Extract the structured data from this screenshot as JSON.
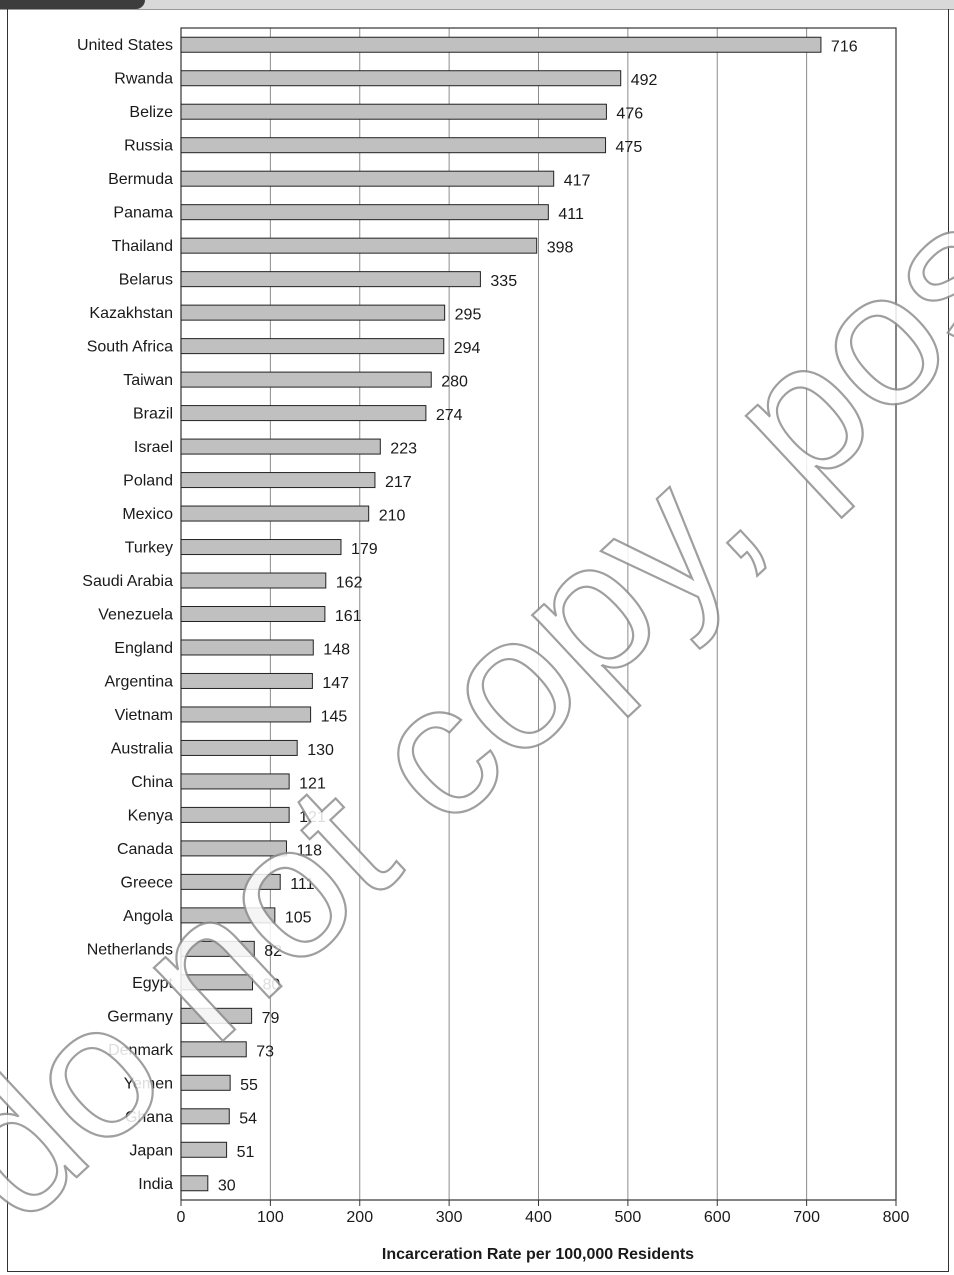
{
  "watermark": "do not copy, post, or distribute",
  "chart_data": {
    "type": "bar",
    "orientation": "horizontal",
    "title": "",
    "xlabel": "Incarceration Rate per 100,000 Residents",
    "ylabel": "",
    "xlim": [
      0,
      800
    ],
    "xticks": [
      0,
      100,
      200,
      300,
      400,
      500,
      600,
      700,
      800
    ],
    "grid": "vertical",
    "bar_color": "#c0c0c0",
    "categories": [
      "United States",
      "Rwanda",
      "Belize",
      "Russia",
      "Bermuda",
      "Panama",
      "Thailand",
      "Belarus",
      "Kazakhstan",
      "South Africa",
      "Taiwan",
      "Brazil",
      "Israel",
      "Poland",
      "Mexico",
      "Turkey",
      "Saudi Arabia",
      "Venezuela",
      "England",
      "Argentina",
      "Vietnam",
      "Australia",
      "China",
      "Kenya",
      "Canada",
      "Greece",
      "Angola",
      "Netherlands",
      "Egypt",
      "Germany",
      "Denmark",
      "Yemen",
      "Ghana",
      "Japan",
      "India"
    ],
    "values": [
      716,
      492,
      476,
      475,
      417,
      411,
      398,
      335,
      295,
      294,
      280,
      274,
      223,
      217,
      210,
      179,
      162,
      161,
      148,
      147,
      145,
      130,
      121,
      121,
      118,
      111,
      105,
      82,
      80,
      79,
      73,
      55,
      54,
      51,
      30
    ]
  }
}
